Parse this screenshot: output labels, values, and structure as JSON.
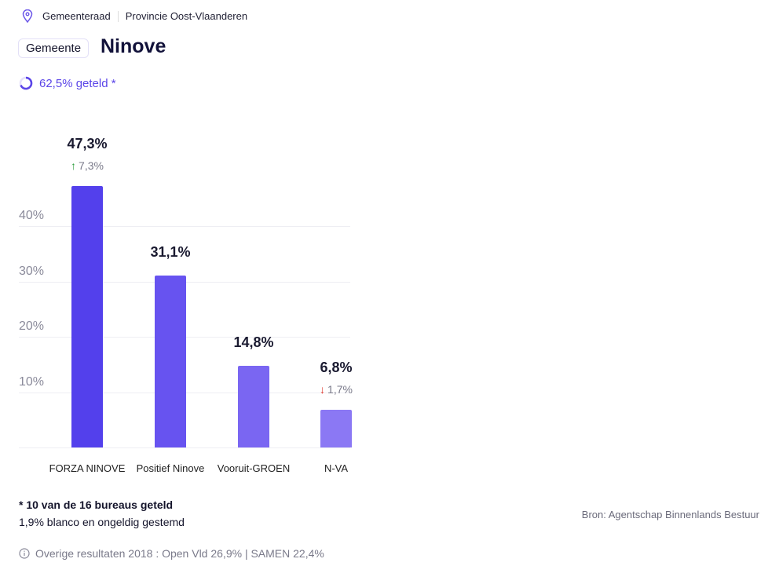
{
  "breadcrumb": {
    "items": [
      "Gemeenteraad",
      "Provincie Oost-Vlaanderen"
    ]
  },
  "header": {
    "badge": "Gemeente",
    "title": "Ninove"
  },
  "progress": {
    "label": "62,5% geteld *",
    "fraction": 0.625
  },
  "chart_data": {
    "type": "bar",
    "categories": [
      "FORZA NINOVE",
      "Positief Ninove",
      "Vooruit-GROEN",
      "N-VA"
    ],
    "values": [
      47.3,
      31.1,
      14.8,
      6.8
    ],
    "value_labels": [
      "47,3%",
      "31,1%",
      "14,8%",
      "6,8%"
    ],
    "changes": [
      {
        "dir": "up",
        "label": "7,3%"
      },
      null,
      null,
      {
        "dir": "down",
        "label": "1,7%"
      }
    ],
    "colors": [
      "#5340ec",
      "#6753f0",
      "#7a66f2",
      "#8b78f4"
    ],
    "yticks": [
      "10%",
      "20%",
      "30%",
      "40%"
    ],
    "ytick_values": [
      10,
      20,
      30,
      40
    ],
    "ylim": [
      0,
      50
    ],
    "grid": true
  },
  "footer": {
    "note": "* 10 van de 16 bureaus geteld",
    "blank": "1,9% blanco en ongeldig gestemd",
    "source": "Bron: Agentschap Binnenlands Bestuur",
    "other": "Overige resultaten 2018 : Open Vld 26,9% | SAMEN 22,4%"
  }
}
